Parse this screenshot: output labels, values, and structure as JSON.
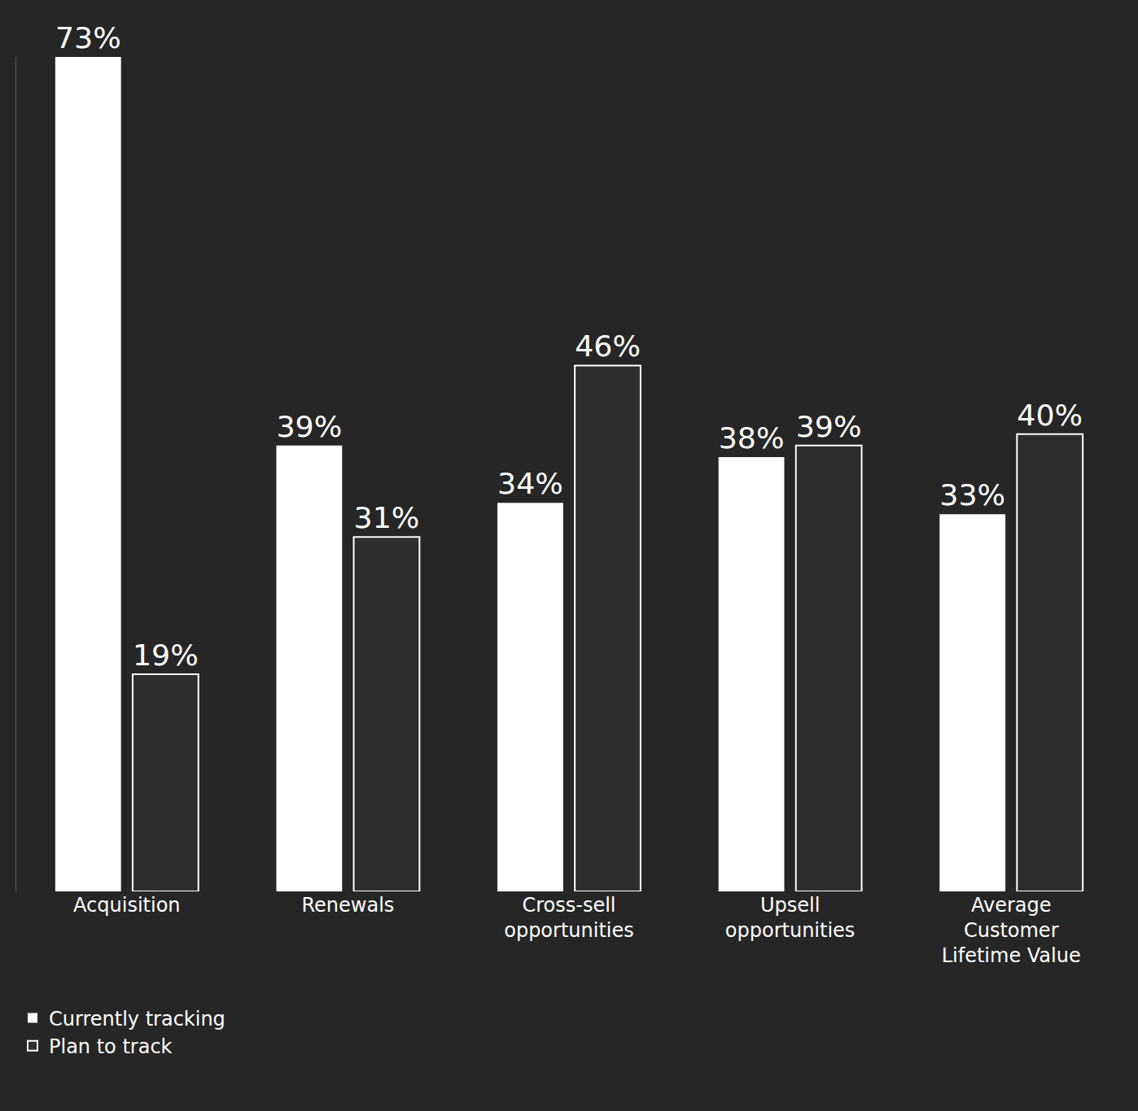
{
  "chart_data": {
    "type": "bar",
    "categories": [
      "Acquisition",
      "Renewals",
      "Cross-sell opportunities",
      "Upsell opportunities",
      "Average Customer Lifetime Value"
    ],
    "series": [
      {
        "name": "Currently tracking",
        "color": "#ffffff",
        "values": [
          73,
          39,
          34,
          38,
          33
        ],
        "value_labels": [
          "73%",
          "39%",
          "34%",
          "38%",
          "33%"
        ]
      },
      {
        "name": "Plan to track",
        "color": "#2e2e2e",
        "values": [
          19,
          31,
          46,
          39,
          40
        ],
        "value_labels": [
          "19%",
          "31%",
          "46%",
          "39%",
          "40%"
        ]
      }
    ],
    "ylim": [
      0,
      73
    ],
    "grid": false,
    "legend": "bottom left",
    "data_labels": true,
    "tick_labels": "x"
  }
}
